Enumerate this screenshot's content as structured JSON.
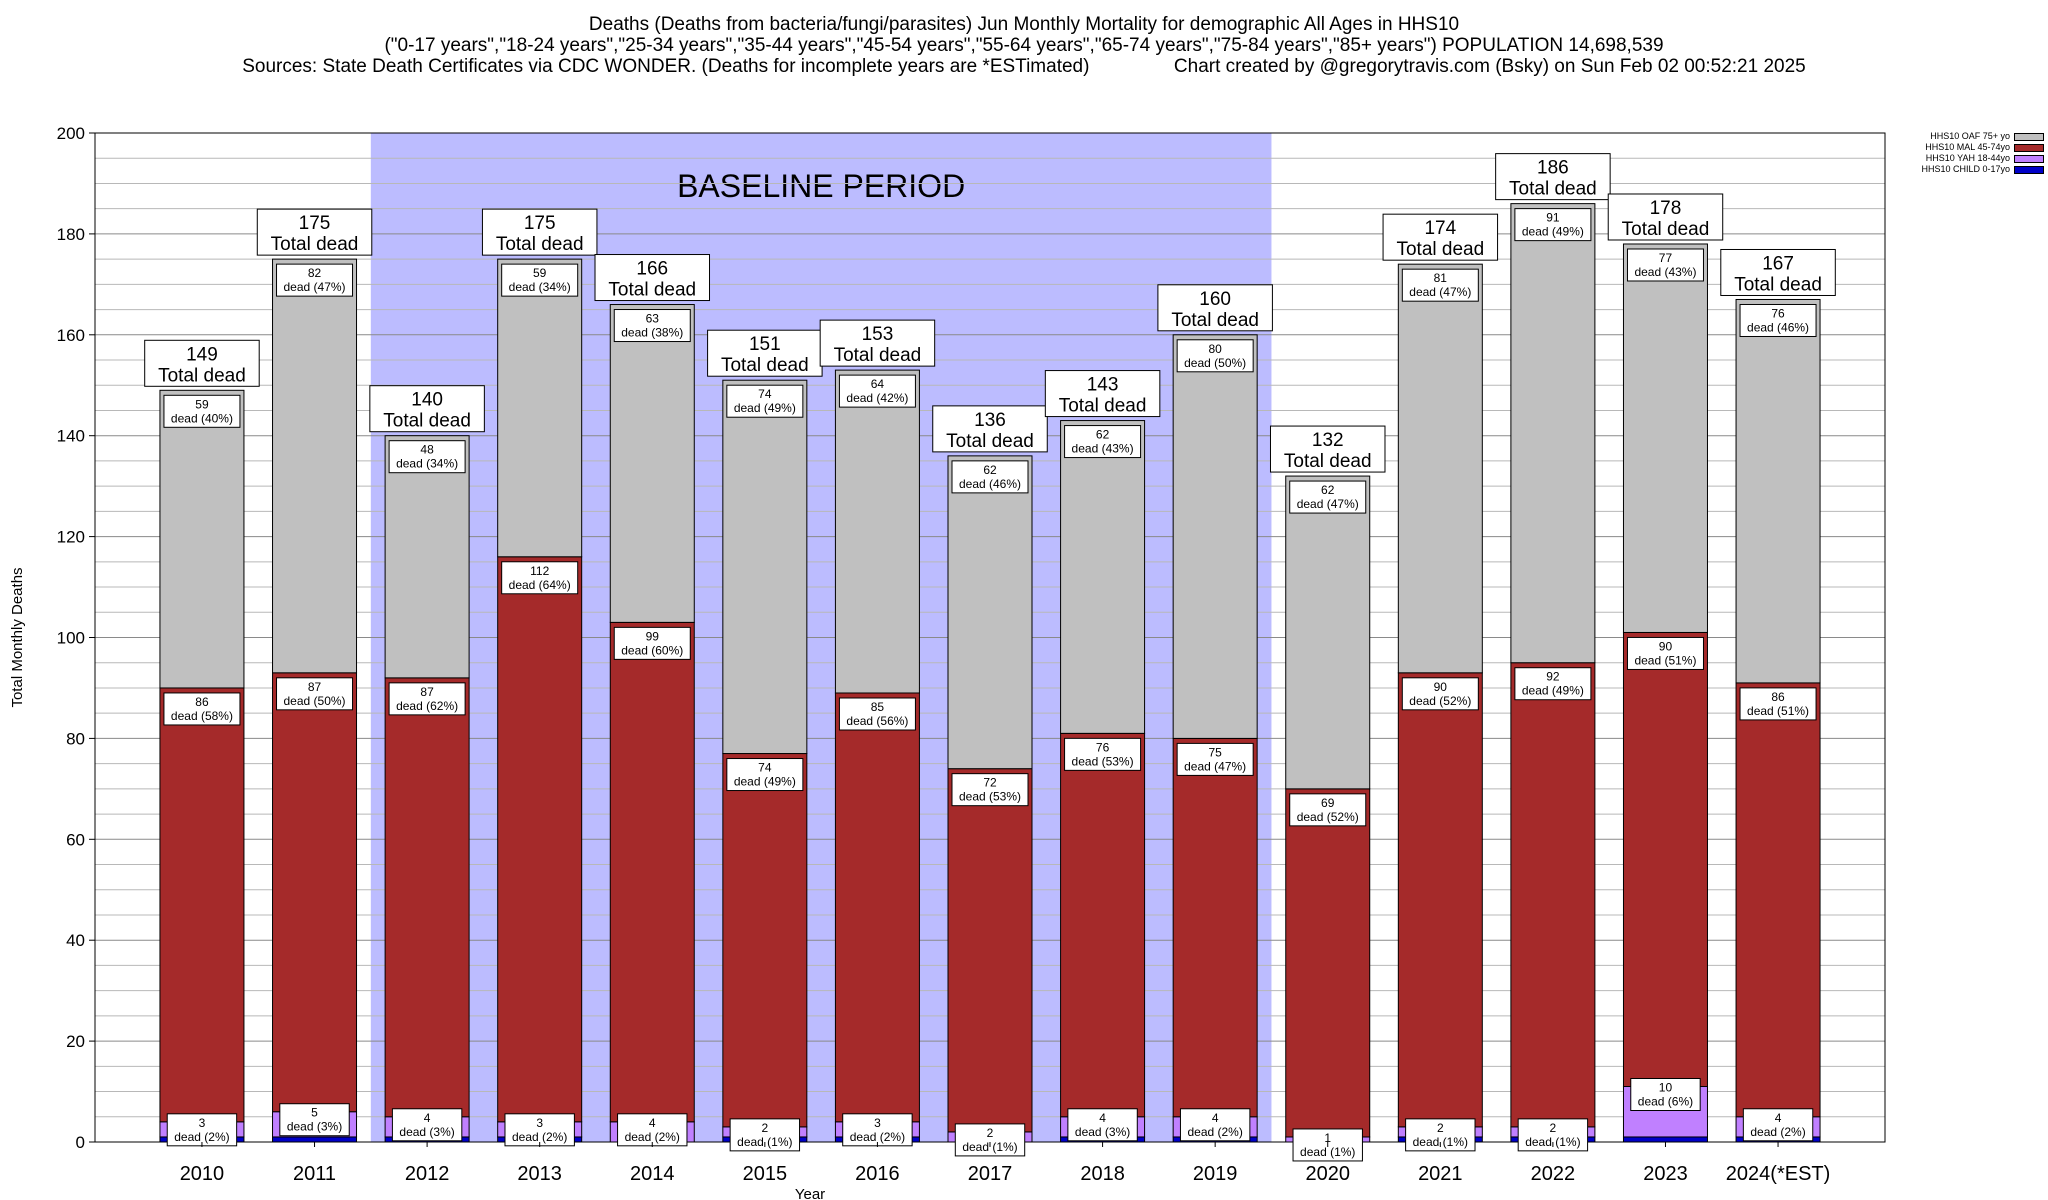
{
  "title": {
    "line1": "Deaths (Deaths from bacteria/fungi/parasites) Jun Monthly Mortality for demographic All Ages in HHS10",
    "line2": "(\"0-17 years\",\"18-24 years\",\"25-34 years\",\"35-44 years\",\"45-54 years\",\"55-64 years\",\"65-74 years\",\"75-84 years\",\"85+ years\") POPULATION 14,698,539",
    "line3_left": "Sources: State Death Certificates via CDC WONDER. (Deaths for incomplete years are *ESTimated)",
    "line3_right": "Chart created by @gregorytravis.com (Bsky) on Sun Feb 02 00:52:21 2025"
  },
  "chart_data": {
    "type": "bar",
    "stacked": true,
    "categories": [
      "2010",
      "2011",
      "2012",
      "2013",
      "2014",
      "2015",
      "2016",
      "2017",
      "2018",
      "2019",
      "2020",
      "2021",
      "2022",
      "2023",
      "2024(*EST)"
    ],
    "series": [
      {
        "name": "HHS10 CHILD 0-17yo",
        "color": "#0000c8",
        "values": [
          1,
          1,
          1,
          1,
          0,
          1,
          1,
          0,
          1,
          1,
          0,
          1,
          1,
          1,
          1
        ]
      },
      {
        "name": "HHS10 YAH 18-44yo",
        "color": "#c080ff",
        "values": [
          3,
          5,
          4,
          3,
          4,
          2,
          3,
          2,
          4,
          4,
          1,
          2,
          2,
          10,
          4
        ]
      },
      {
        "name": "HHS10 MAL 45-74yo",
        "color": "#a52a2a",
        "values": [
          86,
          87,
          87,
          112,
          99,
          74,
          85,
          72,
          76,
          75,
          69,
          90,
          92,
          90,
          86
        ]
      },
      {
        "name": "HHS10 OAF 75+ yo",
        "color": "#c0c0c0",
        "values": [
          59,
          82,
          48,
          59,
          63,
          74,
          64,
          62,
          62,
          80,
          62,
          81,
          91,
          77,
          76
        ]
      }
    ],
    "totals": [
      149,
      175,
      140,
      175,
      166,
      151,
      153,
      136,
      143,
      160,
      132,
      174,
      186,
      178,
      167
    ],
    "pct_labels": {
      "oaf": [
        "dead (40%)",
        "dead (47%)",
        "dead (34%)",
        "dead (34%)",
        "dead (38%)",
        "dead (49%)",
        "dead (42%)",
        "dead (46%)",
        "dead (43%)",
        "dead (50%)",
        "dead (47%)",
        "dead (47%)",
        "dead (49%)",
        "dead (43%)",
        "dead (46%)"
      ],
      "mal": [
        "dead (58%)",
        "dead (50%)",
        "dead (62%)",
        "dead (64%)",
        "dead (60%)",
        "dead (49%)",
        "dead (56%)",
        "dead (53%)",
        "dead (53%)",
        "dead (47%)",
        "dead (52%)",
        "dead (52%)",
        "dead (49%)",
        "dead (51%)",
        "dead (51%)"
      ],
      "yah": [
        "dead (2%)",
        "dead (3%)",
        "dead (3%)",
        "dead (2%)",
        "dead (2%)",
        "dead (1%)",
        "dead (2%)",
        "dead (1%)",
        "dead (3%)",
        "dead (2%)",
        "dead (1%)",
        "dead (1%)",
        "dead (1%)",
        "dead (6%)",
        "dead (2%)"
      ]
    },
    "total_suffix": "Total dead",
    "xlabel": "Year",
    "ylabel": "Total Monthly Deaths",
    "ylim": [
      0,
      200
    ],
    "yticks": [
      0,
      20,
      40,
      60,
      80,
      100,
      120,
      140,
      160,
      180,
      200
    ],
    "minor_grid_step": 5,
    "grid": true,
    "legend_position": "top-right",
    "baseline_period": {
      "label": "BASELINE PERIOD",
      "from": "2012",
      "to": "2019",
      "color": "#bcbcff"
    }
  }
}
